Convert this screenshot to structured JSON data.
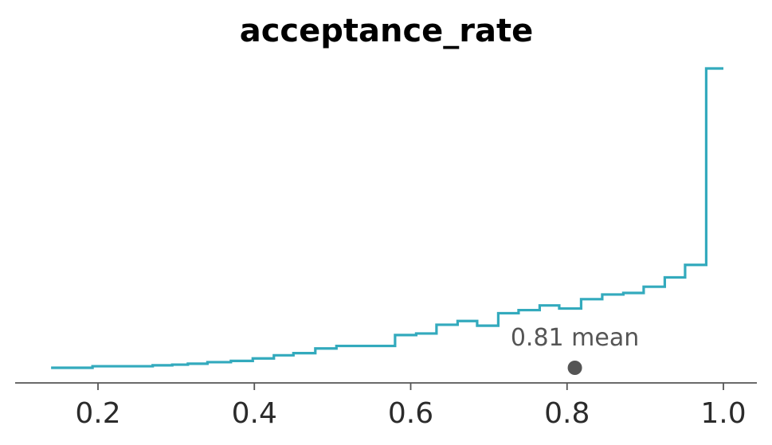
{
  "chart_data": {
    "type": "line",
    "title": "acceptance_rate",
    "xlabel": "",
    "ylabel": "",
    "xlim": [
      0.09,
      1.045
    ],
    "ylim": [
      0,
      1.0
    ],
    "x_ticks": [
      "0.2",
      "0.4",
      "0.6",
      "0.8",
      "1.0"
    ],
    "grid": false,
    "legend": "none",
    "series": [
      {
        "values": [
          {
            "x": 0.14,
            "y": 0.0
          },
          {
            "x": 0.193,
            "y": 0.005
          },
          {
            "x": 0.27,
            "y": 0.008
          },
          {
            "x": 0.295,
            "y": 0.01
          },
          {
            "x": 0.315,
            "y": 0.013
          },
          {
            "x": 0.34,
            "y": 0.018
          },
          {
            "x": 0.37,
            "y": 0.022
          },
          {
            "x": 0.398,
            "y": 0.03
          },
          {
            "x": 0.425,
            "y": 0.04
          },
          {
            "x": 0.45,
            "y": 0.047
          },
          {
            "x": 0.478,
            "y": 0.062
          },
          {
            "x": 0.505,
            "y": 0.07
          },
          {
            "x": 0.58,
            "y": 0.105
          },
          {
            "x": 0.607,
            "y": 0.11
          },
          {
            "x": 0.633,
            "y": 0.138
          },
          {
            "x": 0.66,
            "y": 0.15
          },
          {
            "x": 0.685,
            "y": 0.135
          },
          {
            "x": 0.712,
            "y": 0.175
          },
          {
            "x": 0.738,
            "y": 0.185
          },
          {
            "x": 0.765,
            "y": 0.2
          },
          {
            "x": 0.79,
            "y": 0.19
          },
          {
            "x": 0.818,
            "y": 0.22
          },
          {
            "x": 0.845,
            "y": 0.235
          },
          {
            "x": 0.872,
            "y": 0.24
          },
          {
            "x": 0.898,
            "y": 0.26
          },
          {
            "x": 0.925,
            "y": 0.29
          },
          {
            "x": 0.951,
            "y": 0.33
          },
          {
            "x": 0.978,
            "y": 0.96
          },
          {
            "x": 1.0,
            "y": 0.96
          }
        ],
        "color": "#33aabd",
        "style": "step-post"
      }
    ],
    "point_estimate": {
      "x": 0.81,
      "label": "0.81 mean",
      "color": "#555555"
    }
  }
}
